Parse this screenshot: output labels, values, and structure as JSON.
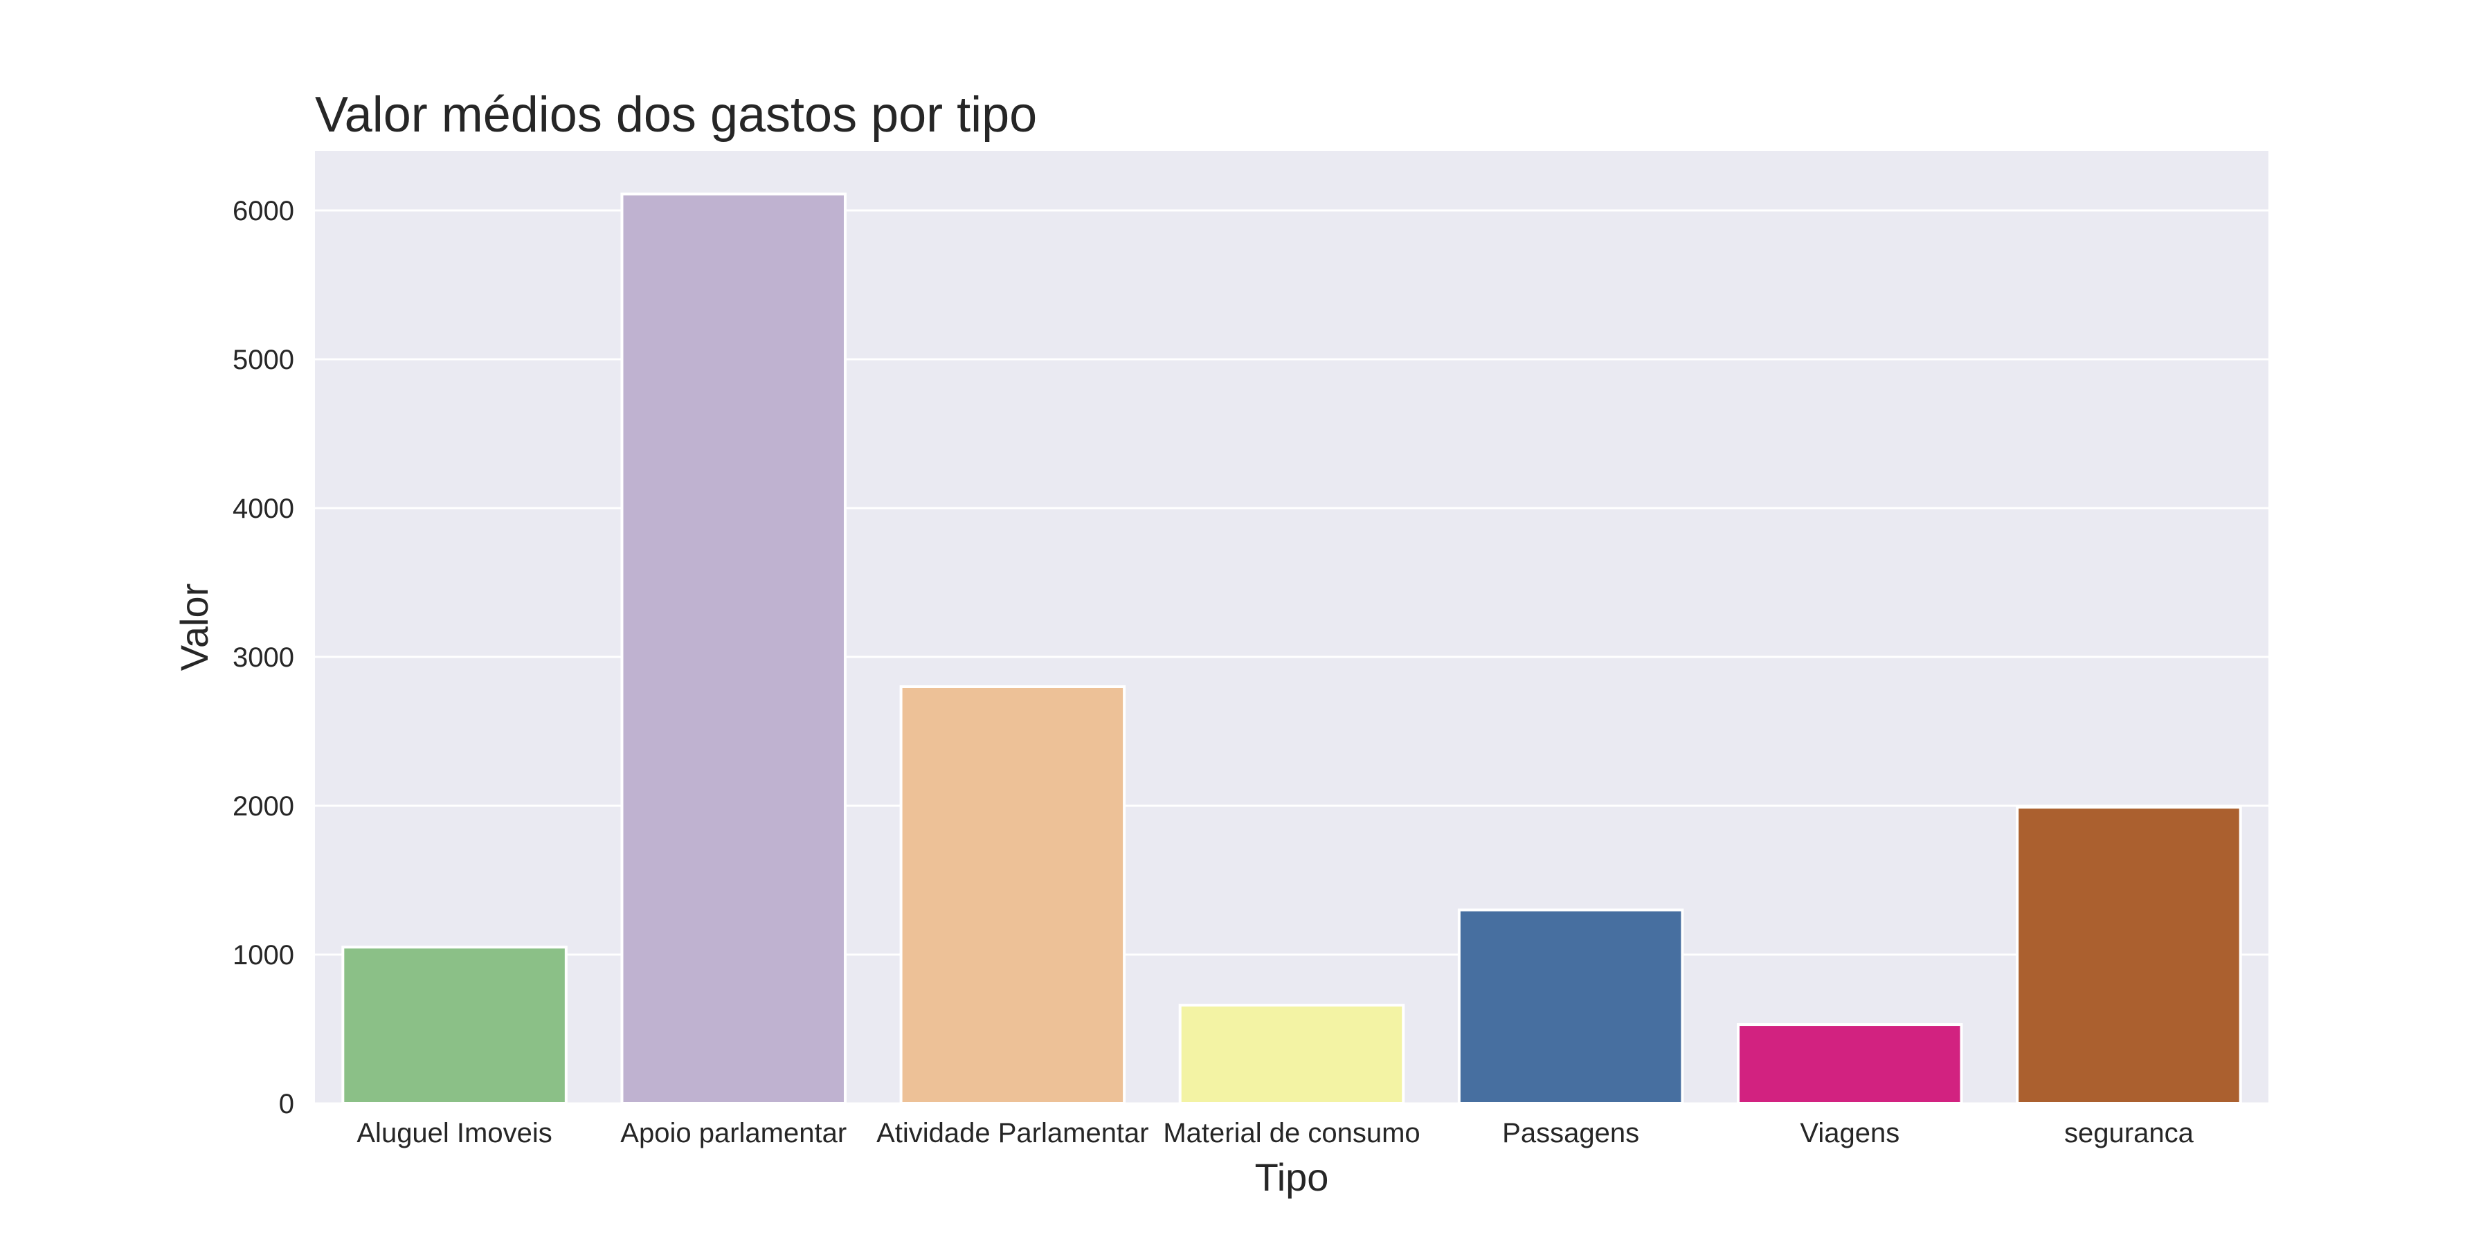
{
  "chart_data": {
    "type": "bar",
    "title": "Valor médios dos gastos por tipo",
    "xlabel": "Tipo",
    "ylabel": "Valor",
    "categories": [
      "Aluguel Imoveis",
      "Apoio parlamentar",
      "Atividade Parlamentar",
      "Material de consumo",
      "Passagens",
      "Viagens",
      "seguranca"
    ],
    "values": [
      1050,
      6110,
      2800,
      660,
      1300,
      530,
      1990
    ],
    "colors": [
      "#8bc087",
      "#bfb2d0",
      "#edc197",
      "#f3f3a4",
      "#476fa0",
      "#d22280",
      "#ab602f"
    ],
    "yticks": [
      0,
      1000,
      2000,
      3000,
      4000,
      5000,
      6000
    ],
    "ylim": [
      0,
      6400
    ],
    "grid": true,
    "plot_background": "#eaeaf2",
    "grid_color": "#ffffff"
  }
}
